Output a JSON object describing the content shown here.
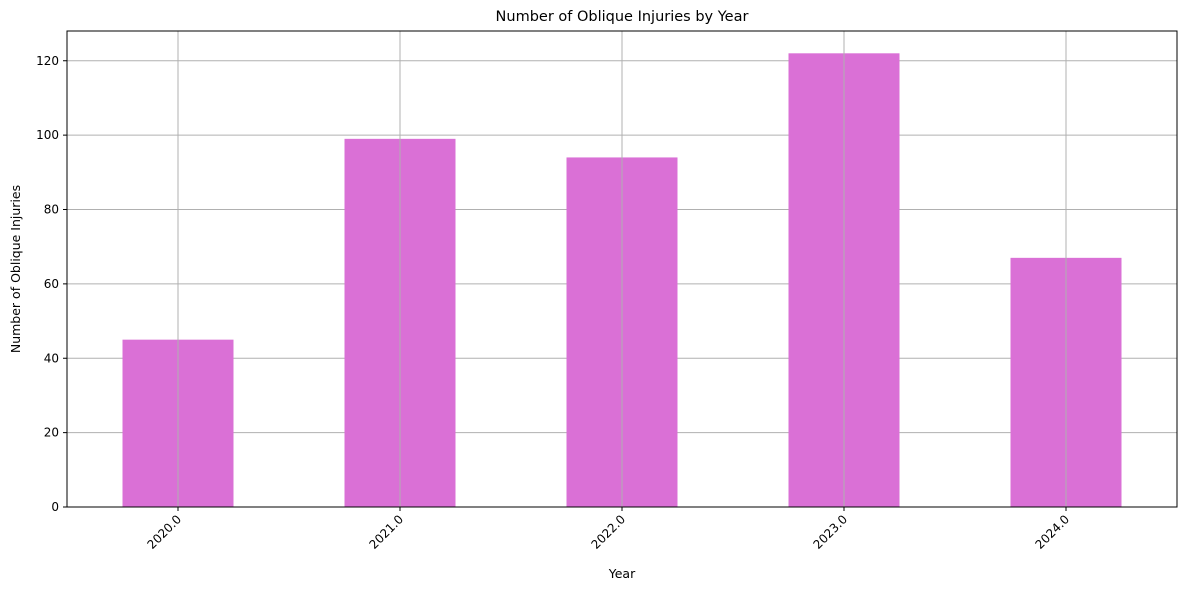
{
  "chart_data": {
    "type": "bar",
    "title": "Number of Oblique Injuries by Year",
    "xlabel": "Year",
    "ylabel": "Number of Oblique Injuries",
    "categories": [
      "2020.0",
      "2021.0",
      "2022.0",
      "2023.0",
      "2024.0"
    ],
    "values": [
      45,
      99,
      94,
      122,
      67
    ],
    "ylim": [
      0,
      128
    ],
    "yticks": [
      "0",
      "20",
      "40",
      "60",
      "80",
      "100",
      "120"
    ],
    "grid": true,
    "bar_color": "#da70d6",
    "grid_color": "#b0b0b0",
    "xtick_rotation_deg": 45
  }
}
